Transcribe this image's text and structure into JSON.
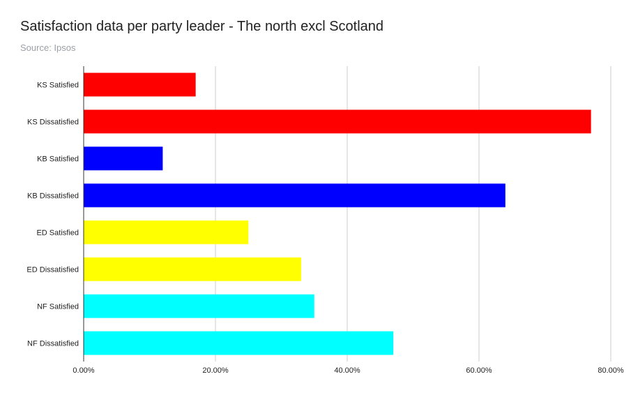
{
  "chart_data": {
    "type": "bar",
    "orientation": "horizontal",
    "title": "Satisfaction data per party leader - The north excl Scotland",
    "subtitle": "Source: Ipsos",
    "categories": [
      "KS Satisfied",
      "KS Dissatisfied",
      "KB Satisfied",
      "KB Dissatisfied",
      "ED Satisfied",
      "ED Dissatisfied",
      "NF Satisfied",
      "NF Dissatisfied"
    ],
    "values": [
      17,
      77,
      12,
      64,
      25,
      33,
      35,
      47
    ],
    "bar_colors": [
      "#ff0000",
      "#ff0000",
      "#0000ff",
      "#0000ff",
      "#ffff00",
      "#ffff00",
      "#00ffff",
      "#00ffff"
    ],
    "xlim": [
      0,
      80
    ],
    "xticks": [
      0,
      20,
      40,
      60,
      80
    ],
    "xtick_labels": [
      "0.00%",
      "20.00%",
      "40.00%",
      "60.00%",
      "80.00%"
    ],
    "xlabel": "",
    "ylabel": "",
    "grid": "vertical",
    "legend": "none"
  }
}
